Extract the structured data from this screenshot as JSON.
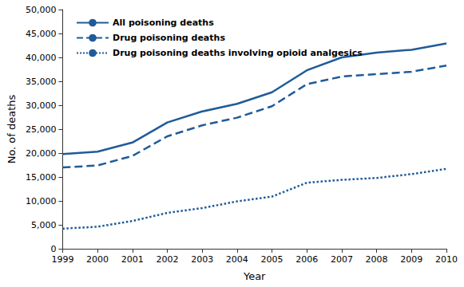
{
  "chart_data": {
    "type": "line",
    "x_label": "Year",
    "y_label": "No. of deaths",
    "categories": [
      "1999",
      "2000",
      "2001",
      "2002",
      "2003",
      "2004",
      "2005",
      "2006",
      "2007",
      "2008",
      "2009",
      "2010"
    ],
    "series": [
      {
        "name": "All poisoning deaths",
        "color": "#1f5b99",
        "line_style": "solid",
        "values": [
          19800,
          20300,
          22200,
          26400,
          28700,
          30300,
          32700,
          37300,
          40000,
          41000,
          41600,
          42900
        ]
      },
      {
        "name": "Drug poisoning deaths",
        "color": "#1f5b99",
        "line_style": "dashed",
        "values": [
          17000,
          17400,
          19400,
          23500,
          25800,
          27400,
          29800,
          34400,
          36000,
          36500,
          37000,
          38300
        ]
      },
      {
        "name": "Drug poisoning deaths involving opioid analgesics",
        "color": "#1f5b99",
        "line_style": "dotted",
        "values": [
          4200,
          4600,
          5800,
          7500,
          8500,
          9900,
          10900,
          13800,
          14400,
          14800,
          15600,
          16700
        ]
      }
    ],
    "ylim": [
      0,
      50000
    ],
    "yticks": [
      0,
      {
        "value": 5000,
        "label": "5,000"
      },
      {
        "value": 10000,
        "label": "10,000"
      },
      {
        "value": 15000,
        "label": "15,000"
      },
      {
        "value": 20000,
        "label": "20,000"
      },
      {
        "value": 25000,
        "label": "25,000"
      },
      {
        "value": 30000,
        "label": "30,000"
      },
      {
        "value": 35000,
        "label": "35,000"
      },
      {
        "value": 40000,
        "label": "40,000"
      },
      {
        "value": 45000,
        "label": "45,000"
      },
      {
        "value": 50000,
        "label": "50,000"
      }
    ],
    "grid": false,
    "legend": "upper left"
  }
}
